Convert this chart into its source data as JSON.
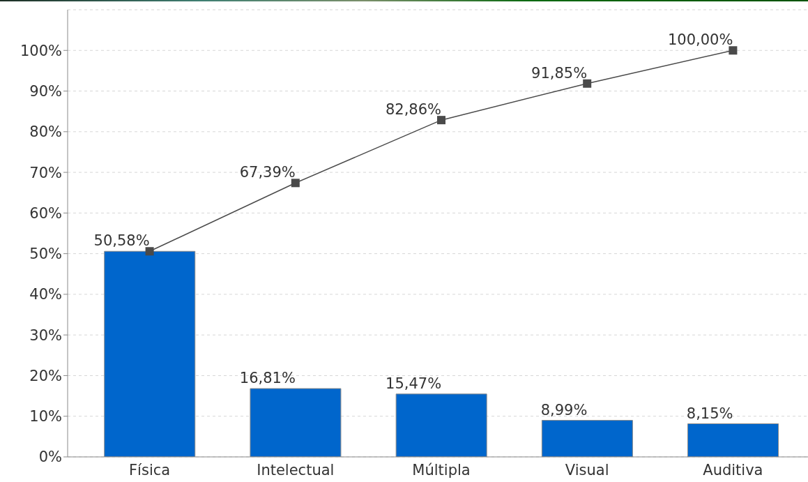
{
  "chart_data": {
    "type": "bar",
    "categories": [
      "Física",
      "Intelectual",
      "Múltipla",
      "Visual",
      "Auditiva"
    ],
    "series": [
      {
        "color": "#0066cc",
        "values": [
          50.58,
          16.81,
          15.47,
          8.99,
          8.15
        ],
        "value_labels": [
          null,
          "16,81%",
          "15,47%",
          "8,99%",
          "8,15%"
        ]
      },
      {
        "type": "line",
        "color": "#4a4a4a",
        "values": [
          50.58,
          67.39,
          82.86,
          91.85,
          100.0
        ],
        "value_labels": [
          "50,58%",
          "67,39%",
          "82,86%",
          "91,85%",
          "100,00%"
        ]
      }
    ],
    "ylim": [
      0,
      110
    ],
    "yticks": [
      {
        "value": 0,
        "label": "0%"
      },
      {
        "value": 10,
        "label": "10%"
      },
      {
        "value": 20,
        "label": "20%"
      },
      {
        "value": 30,
        "label": "30%"
      },
      {
        "value": 40,
        "label": "40%"
      },
      {
        "value": 50,
        "label": "50%"
      },
      {
        "value": 60,
        "label": "60%"
      },
      {
        "value": 70,
        "label": "70%"
      },
      {
        "value": 80,
        "label": "80%"
      },
      {
        "value": 90,
        "label": "90%"
      },
      {
        "value": 100,
        "label": "100%"
      }
    ],
    "grid": "y",
    "marker": "square"
  }
}
